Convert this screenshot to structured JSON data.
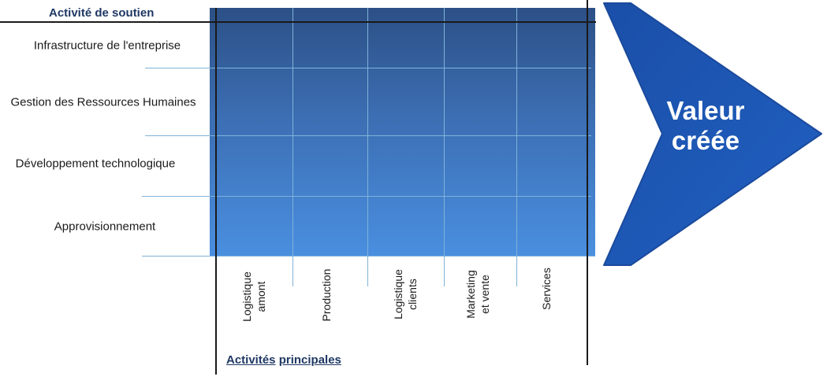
{
  "support": {
    "heading": "Activité de soutien",
    "activities": [
      "Infrastructure de l'entreprise",
      "Gestion des Ressources Humaines",
      "Développement technologique",
      "Approvisionnement"
    ]
  },
  "primary": {
    "heading_part1": "Activités",
    "heading_part2": "principales",
    "activities": [
      {
        "line1": "Logistique",
        "line2": "amont"
      },
      {
        "line1": "Production",
        "line2": ""
      },
      {
        "line1": "Logistique",
        "line2": "clients"
      },
      {
        "line1": "Marketing",
        "line2": "et vente"
      },
      {
        "line1": "Services",
        "line2": ""
      }
    ]
  },
  "arrow": {
    "line1": "Valeur",
    "line2": "créée"
  },
  "colors": {
    "grid_top": "#2c5086",
    "grid_bottom": "#4a8fe0",
    "arrow": "#1e56b4",
    "divider": "#7fb3d8",
    "heading": "#1f3864"
  }
}
